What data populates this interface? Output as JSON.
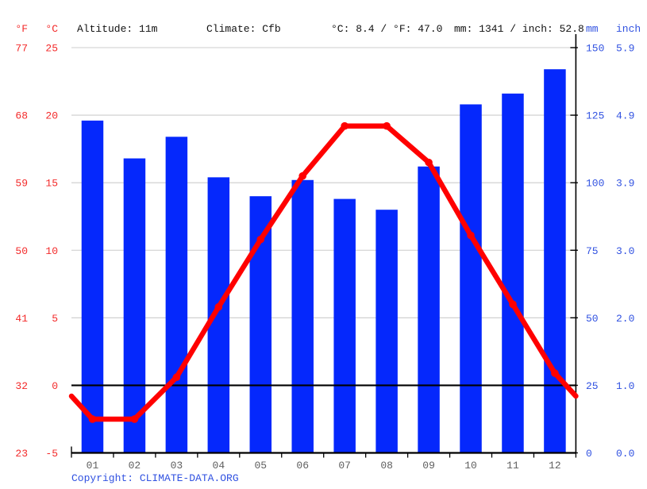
{
  "header": {
    "fahrenheit_label": "°F",
    "celsius_label": "°C",
    "altitude": "Altitude: 11m",
    "climate": "Climate: Cfb",
    "temperature_summary": "°C: 8.4 / °F: 47.0",
    "precipitation_summary": "mm: 1341 / inch: 52.8",
    "mm_label": "mm",
    "inch_label": "inch"
  },
  "axes": {
    "left_fahrenheit": [
      "77",
      "68",
      "59",
      "50",
      "41",
      "32",
      "23"
    ],
    "left_celsius": [
      "25",
      "20",
      "15",
      "10",
      "5",
      "0",
      "-5"
    ],
    "left_celsius_values": [
      25,
      20,
      15,
      10,
      5,
      0,
      -5
    ],
    "right_mm": [
      "150",
      "125",
      "100",
      "75",
      "50",
      "25",
      "0"
    ],
    "right_mm_values": [
      150,
      125,
      100,
      75,
      50,
      25,
      0
    ],
    "right_inch": [
      "5.9",
      "4.9",
      "3.9",
      "3.0",
      "2.0",
      "1.0",
      "0.0"
    ]
  },
  "chart_data": {
    "type": "bar",
    "categories": [
      "01",
      "02",
      "03",
      "04",
      "05",
      "06",
      "07",
      "08",
      "09",
      "10",
      "11",
      "12"
    ],
    "series": [
      {
        "name": "precipitation-mm",
        "type": "bar",
        "color": "#0528fc",
        "values": [
          123,
          109,
          117,
          102,
          95,
          101,
          94,
          90,
          106,
          129,
          133,
          142
        ]
      },
      {
        "name": "temperature-c",
        "type": "line",
        "color": "#ff0000",
        "values": [
          -2.5,
          -2.5,
          0.6,
          5.8,
          10.8,
          15.5,
          19.2,
          19.2,
          16.5,
          11.1,
          6.0,
          0.9
        ],
        "edge_values": [
          -0.8,
          -0.8
        ]
      }
    ],
    "temp_axis_c": {
      "min": -5,
      "max": 25
    },
    "precip_axis_mm": {
      "min": 0,
      "max": 150
    },
    "grid": true,
    "legend": false
  },
  "footer": {
    "copyright_prefix": "Copyright: ",
    "site": "CLIMATE-DATA.ORG"
  },
  "colors": {
    "red_label": "#f32a2a",
    "blue_label": "#3152e1",
    "header_text": "#111111",
    "month_label": "#5f5f5f",
    "grid": "#cccccc",
    "axis": "#000000",
    "bar": "#0528fc",
    "line": "#ff0000"
  }
}
